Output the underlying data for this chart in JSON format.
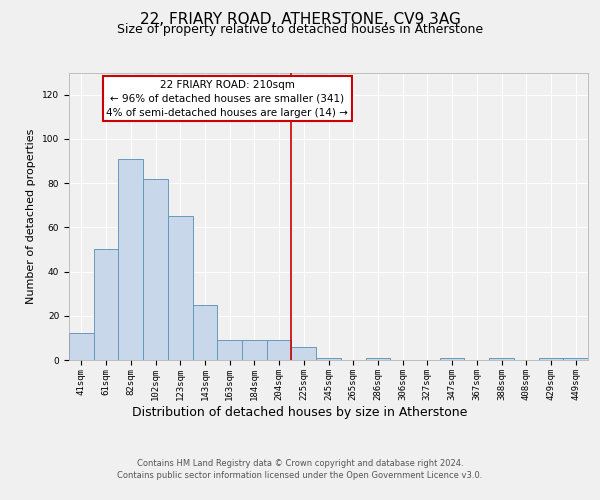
{
  "title": "22, FRIARY ROAD, ATHERSTONE, CV9 3AG",
  "subtitle": "Size of property relative to detached houses in Atherstone",
  "xlabel": "Distribution of detached houses by size in Atherstone",
  "ylabel": "Number of detached properties",
  "bar_labels": [
    "41sqm",
    "61sqm",
    "82sqm",
    "102sqm",
    "123sqm",
    "143sqm",
    "163sqm",
    "184sqm",
    "204sqm",
    "225sqm",
    "245sqm",
    "265sqm",
    "286sqm",
    "306sqm",
    "327sqm",
    "347sqm",
    "367sqm",
    "388sqm",
    "408sqm",
    "429sqm",
    "449sqm"
  ],
  "bar_values": [
    12,
    50,
    91,
    82,
    65,
    25,
    9,
    9,
    9,
    6,
    1,
    0,
    1,
    0,
    0,
    1,
    0,
    1,
    0,
    1,
    1
  ],
  "bar_color": "#c8d8ea",
  "bar_edge_color": "#6699bb",
  "ylim": [
    0,
    130
  ],
  "yticks": [
    0,
    20,
    40,
    60,
    80,
    100,
    120
  ],
  "property_line_x": 8.5,
  "property_line_color": "#cc0000",
  "annotation_title": "22 FRIARY ROAD: 210sqm",
  "annotation_line1": "← 96% of detached houses are smaller (341)",
  "annotation_line2": "4% of semi-detached houses are larger (14) →",
  "footer_line1": "Contains HM Land Registry data © Crown copyright and database right 2024.",
  "footer_line2": "Contains public sector information licensed under the Open Government Licence v3.0.",
  "background_color": "#f0f0f0",
  "grid_color": "#ffffff",
  "title_fontsize": 11,
  "subtitle_fontsize": 9,
  "xlabel_fontsize": 9,
  "ylabel_fontsize": 8,
  "tick_fontsize": 6.5,
  "annotation_fontsize": 7.5,
  "footer_fontsize": 6
}
